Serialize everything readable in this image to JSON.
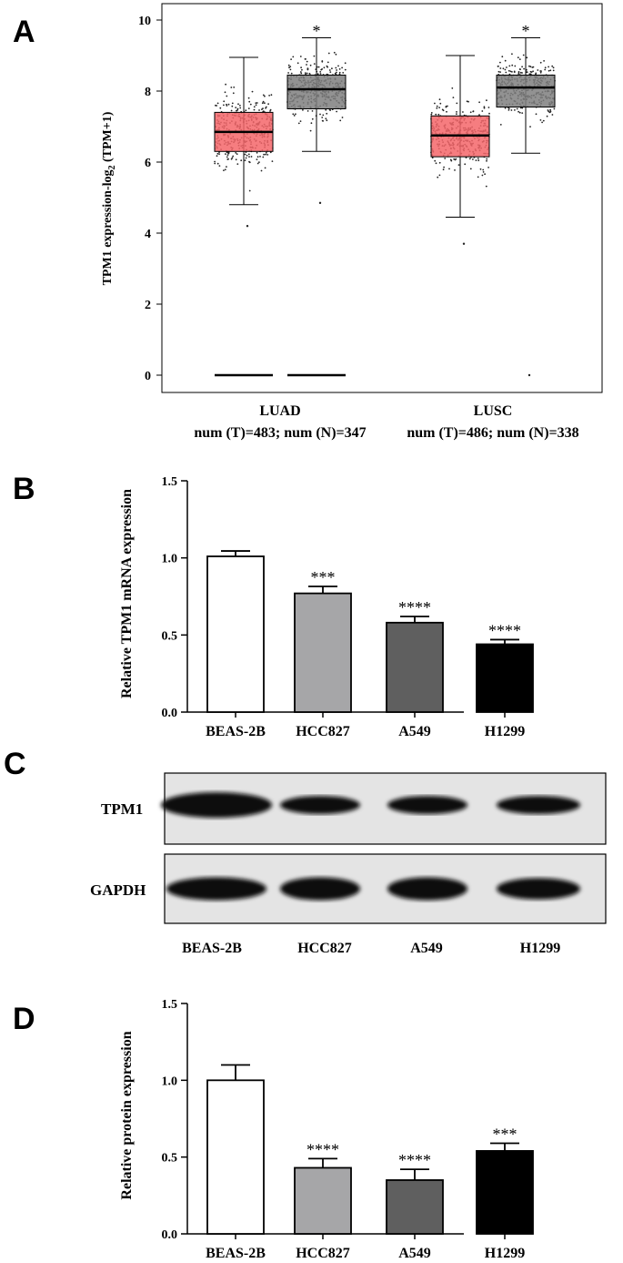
{
  "panels": {
    "A": "A",
    "B": "B",
    "C": "C",
    "D": "D"
  },
  "chart_data": [
    {
      "id": "A",
      "type": "box",
      "title": "",
      "ylabel_main": "TPM1 expression-log",
      "ylabel_sub": "2",
      "ylabel_tail": " (TPM+1)",
      "ylim": [
        0,
        10
      ],
      "yticks": [
        0,
        2,
        4,
        6,
        8,
        10
      ],
      "colors": {
        "tumor": "#f4666a",
        "normal": "#7f7f7f"
      },
      "groups": [
        {
          "name": "LUAD",
          "subtitle": "num (T)=483; num (N)=347",
          "tumor": {
            "whisker_low": 4.8,
            "q1": 6.3,
            "median": 6.85,
            "q3": 7.4,
            "whisker_high": 8.95,
            "min_point": 4.2,
            "max_point": 9.65,
            "zero_line": true
          },
          "normal": {
            "whisker_low": 6.3,
            "q1": 7.5,
            "median": 8.05,
            "q3": 8.45,
            "whisker_high": 9.5,
            "min_point": 4.85,
            "max_point": 9.5,
            "zero_line": true
          },
          "significance": "*"
        },
        {
          "name": "LUSC",
          "subtitle": "num (T)=486; num (N)=338",
          "tumor": {
            "whisker_low": 4.45,
            "q1": 6.15,
            "median": 6.75,
            "q3": 7.3,
            "whisker_high": 9.0,
            "min_point": 3.7,
            "max_point": 9.5,
            "zero_line": false
          },
          "normal": {
            "whisker_low": 6.25,
            "q1": 7.55,
            "median": 8.1,
            "q3": 8.45,
            "whisker_high": 9.5,
            "min_point": 0.0,
            "max_point": 9.5,
            "zero_line": false
          },
          "significance": "*"
        }
      ]
    },
    {
      "id": "B",
      "type": "bar",
      "ylabel": "Relative TPM1 mRNA expression",
      "ylim": [
        0,
        1.5
      ],
      "yticks": [
        "0.0",
        "0.5",
        "1.0",
        "1.5"
      ],
      "categories": [
        "BEAS-2B",
        "HCC827",
        "A549",
        "H1299"
      ],
      "values": [
        1.01,
        0.77,
        0.58,
        0.44
      ],
      "errors": [
        0.035,
        0.045,
        0.04,
        0.03
      ],
      "fills": [
        "#ffffff",
        "#a6a6a8",
        "#5f5f5f",
        "#000000"
      ],
      "significance": [
        "",
        "***",
        "****",
        "****"
      ]
    },
    {
      "id": "D",
      "type": "bar",
      "ylabel": "Relative protein expression",
      "ylim": [
        0,
        1.5
      ],
      "yticks": [
        "0.0",
        "0.5",
        "1.0",
        "1.5"
      ],
      "categories": [
        "BEAS-2B",
        "HCC827",
        "A549",
        "H1299"
      ],
      "values": [
        1.0,
        0.43,
        0.35,
        0.54
      ],
      "errors": [
        0.1,
        0.06,
        0.07,
        0.05
      ],
      "fills": [
        "#ffffff",
        "#a6a6a8",
        "#5f5f5f",
        "#000000"
      ],
      "significance": [
        "",
        "****",
        "****",
        "***"
      ]
    }
  ],
  "blot": {
    "rows": [
      "TPM1",
      "GAPDH"
    ],
    "lanes": [
      "BEAS-2B",
      "HCC827",
      "A549",
      "H1299"
    ],
    "band_intensity": {
      "TPM1": [
        1.0,
        0.55,
        0.55,
        0.55
      ],
      "GAPDH": [
        0.85,
        0.85,
        0.85,
        0.75
      ]
    }
  }
}
